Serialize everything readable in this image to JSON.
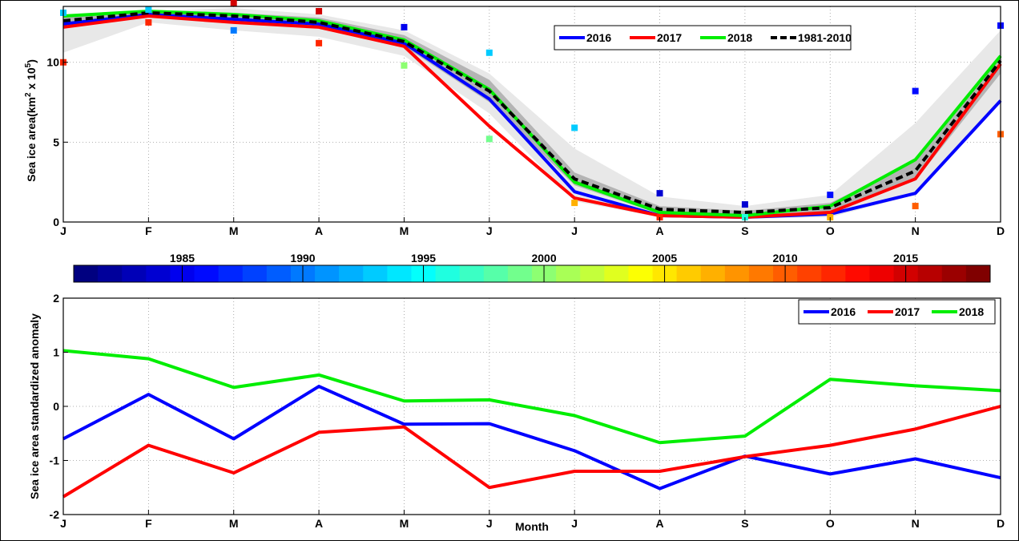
{
  "chart_data": [
    {
      "type": "line",
      "ylabel": "Sea ice area(km",
      "ylabel_sup1": "2",
      "ylabel_mid": " x 10",
      "ylabel_sup2": "5",
      "ylabel_end": ")",
      "x": [
        "J",
        "F",
        "M",
        "A",
        "M",
        "J",
        "J",
        "A",
        "S",
        "O",
        "N",
        "D"
      ],
      "ylim": [
        0,
        13.5
      ],
      "yticks": [
        0,
        5,
        10
      ],
      "grid": true,
      "legend_position": "top-right",
      "series": [
        {
          "name": "2016",
          "color": "#0000ff",
          "style": "solid",
          "values": [
            12.4,
            13.0,
            12.7,
            12.4,
            11.2,
            7.7,
            1.9,
            0.4,
            0.3,
            0.5,
            1.8,
            7.6
          ]
        },
        {
          "name": "2017",
          "color": "#ff0000",
          "style": "solid",
          "values": [
            12.2,
            12.9,
            12.5,
            12.2,
            11.0,
            6.0,
            1.5,
            0.4,
            0.3,
            0.6,
            2.7,
            9.9
          ]
        },
        {
          "name": "2018",
          "color": "#00ee00",
          "style": "solid",
          "values": [
            12.9,
            13.2,
            13.0,
            12.6,
            11.4,
            8.3,
            2.5,
            0.6,
            0.4,
            1.0,
            3.9,
            10.4
          ]
        },
        {
          "name": "1981-2010",
          "color": "#000000",
          "style": "dashed",
          "values": [
            12.6,
            13.1,
            12.9,
            12.5,
            11.3,
            8.2,
            2.7,
            0.8,
            0.6,
            0.9,
            3.2,
            10.1
          ]
        }
      ],
      "band_outer_upper": [
        12.8,
        13.2,
        13.4,
        13.0,
        12.0,
        9.3,
        4.6,
        1.6,
        1.0,
        1.7,
        6.2,
        12.0
      ],
      "band_outer_lower": [
        10.6,
        12.5,
        12.0,
        11.6,
        10.4,
        6.8,
        1.3,
        0.3,
        0.2,
        0.3,
        1.7,
        7.5
      ],
      "band_inner_upper": [
        12.9,
        13.2,
        13.1,
        12.8,
        11.7,
        8.9,
        3.1,
        1.0,
        0.7,
        1.2,
        3.8,
        10.5
      ],
      "band_inner_lower": [
        12.3,
        12.9,
        12.6,
        12.2,
        11.0,
        7.5,
        2.3,
        0.5,
        0.4,
        0.6,
        2.6,
        9.3
      ],
      "extreme_points": [
        {
          "month": 0,
          "value": 13.1,
          "year": 1993
        },
        {
          "month": 0,
          "value": 10.0,
          "year": 2012
        },
        {
          "month": 1,
          "value": 13.3,
          "year": 1993
        },
        {
          "month": 1,
          "value": 12.5,
          "year": 2012
        },
        {
          "month": 2,
          "value": 13.7,
          "year": 2015
        },
        {
          "month": 2,
          "value": 12.0,
          "year": 1990
        },
        {
          "month": 3,
          "value": 13.2,
          "year": 2015
        },
        {
          "month": 3,
          "value": 11.2,
          "year": 2012
        },
        {
          "month": 4,
          "value": 12.2,
          "year": 1985
        },
        {
          "month": 4,
          "value": 9.8,
          "year": 2000
        },
        {
          "month": 5,
          "value": 10.6,
          "year": 1993
        },
        {
          "month": 5,
          "value": 5.2,
          "year": 1999
        },
        {
          "month": 6,
          "value": 5.9,
          "year": 1993
        },
        {
          "month": 6,
          "value": 1.2,
          "year": 2007
        },
        {
          "month": 7,
          "value": 1.8,
          "year": 1984
        },
        {
          "month": 7,
          "value": 0.3,
          "year": 2012
        },
        {
          "month": 8,
          "value": 1.1,
          "year": 1984
        },
        {
          "month": 8,
          "value": 0.3,
          "year": 1996
        },
        {
          "month": 9,
          "value": 1.7,
          "year": 1986
        },
        {
          "month": 9,
          "value": 0.3,
          "year": 2007
        },
        {
          "month": 10,
          "value": 8.2,
          "year": 1986
        },
        {
          "month": 10,
          "value": 1.0,
          "year": 2010
        },
        {
          "month": 11,
          "value": 12.3,
          "year": 1986
        },
        {
          "month": 11,
          "value": 5.5,
          "year": 2010
        }
      ]
    },
    {
      "type": "colorbar",
      "range": [
        1981,
        2018
      ],
      "ticks": [
        1985,
        1990,
        1995,
        2000,
        2005,
        2010,
        2015
      ],
      "colormap": "jet"
    },
    {
      "type": "line",
      "ylabel": "Sea ice area standardized anomaly",
      "xlabel": "Month",
      "x": [
        "J",
        "F",
        "M",
        "A",
        "M",
        "J",
        "J",
        "A",
        "S",
        "O",
        "N",
        "D"
      ],
      "ylim": [
        -2,
        2
      ],
      "yticks": [
        -2,
        -1,
        0,
        1,
        2
      ],
      "grid": true,
      "legend_position": "top-right",
      "series": [
        {
          "name": "2016",
          "color": "#0000ff",
          "values": [
            -0.6,
            0.22,
            -0.6,
            0.37,
            -0.33,
            -0.32,
            -0.82,
            -1.52,
            -0.92,
            -1.25,
            -0.97,
            -1.32
          ]
        },
        {
          "name": "2017",
          "color": "#ff0000",
          "values": [
            -1.67,
            -0.72,
            -1.23,
            -0.48,
            -0.38,
            -1.5,
            -1.2,
            -1.2,
            -0.93,
            -0.72,
            -0.42,
            0.0
          ]
        },
        {
          "name": "2018",
          "color": "#00ee00",
          "values": [
            1.03,
            0.88,
            0.35,
            0.58,
            0.1,
            0.12,
            -0.17,
            -0.67,
            -0.55,
            0.5,
            0.38,
            0.29
          ]
        }
      ]
    }
  ]
}
